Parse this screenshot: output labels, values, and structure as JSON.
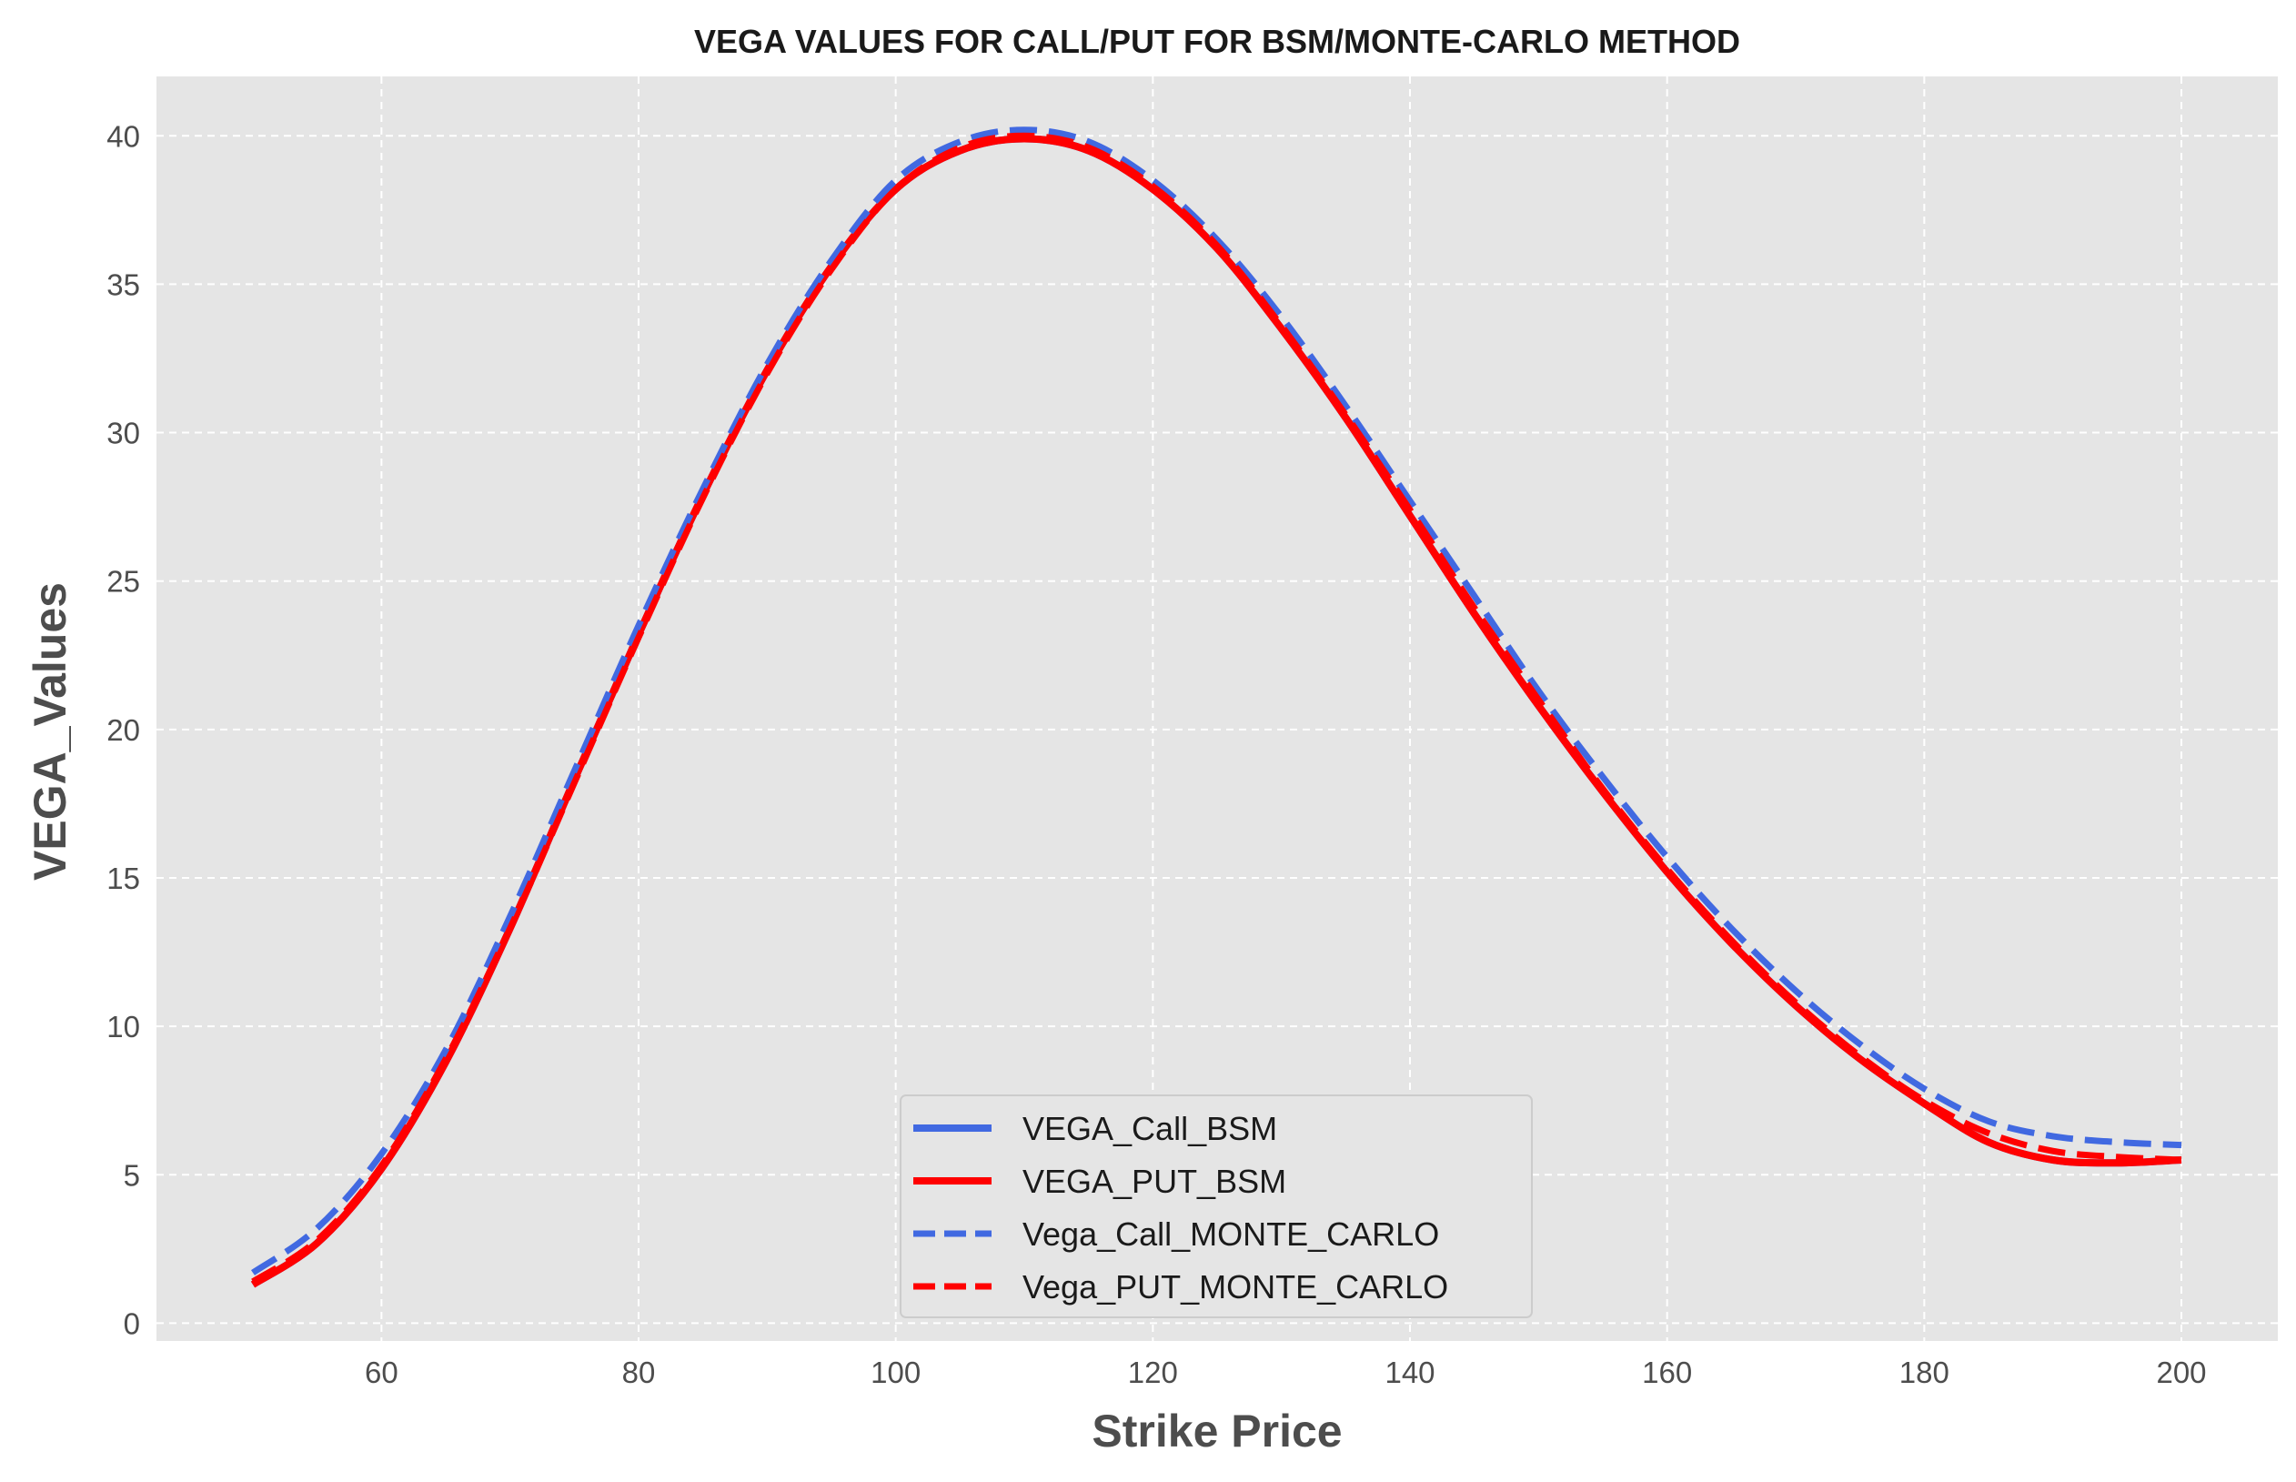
{
  "chart_data": {
    "type": "line",
    "title": "VEGA VALUES FOR CALL/PUT FOR BSM/MONTE-CARLO METHOD",
    "xlabel": "Strike Price",
    "ylabel": "VEGA_Values",
    "xlim": [
      42.5,
      207.5
    ],
    "ylim": [
      -0.6,
      42
    ],
    "xticks": [
      60,
      80,
      100,
      120,
      140,
      160,
      180,
      200
    ],
    "yticks": [
      0,
      5,
      10,
      15,
      20,
      25,
      30,
      35,
      40
    ],
    "grid": true,
    "legend_position": "lower center",
    "x": [
      50,
      55,
      60,
      65,
      70,
      75,
      80,
      85,
      90,
      95,
      100,
      105,
      110,
      115,
      120,
      125,
      130,
      135,
      140,
      145,
      150,
      155,
      160,
      165,
      170,
      175,
      180,
      185,
      190,
      195,
      200
    ],
    "series": [
      {
        "name": "VEGA_Call_BSM",
        "color": "#4169e1",
        "style": "solid",
        "values": [
          1.3,
          2.7,
          5.2,
          8.8,
          13.3,
          18.3,
          23.2,
          27.9,
          32.1,
          35.6,
          38.2,
          39.5,
          39.9,
          39.5,
          38.2,
          36.2,
          33.5,
          30.5,
          27.2,
          23.9,
          20.8,
          17.9,
          15.2,
          12.8,
          10.7,
          8.9,
          7.4,
          6.1,
          5.5,
          5.4,
          5.5
        ]
      },
      {
        "name": "VEGA_PUT_BSM",
        "color": "#ff0000",
        "style": "solid",
        "values": [
          1.3,
          2.7,
          5.2,
          8.8,
          13.3,
          18.3,
          23.2,
          27.9,
          32.1,
          35.6,
          38.2,
          39.5,
          39.9,
          39.5,
          38.2,
          36.2,
          33.5,
          30.5,
          27.2,
          23.9,
          20.8,
          17.9,
          15.2,
          12.8,
          10.7,
          8.9,
          7.4,
          6.1,
          5.5,
          5.4,
          5.5
        ]
      },
      {
        "name": "Vega_Call_MONTE_CARLO",
        "color": "#4169e1",
        "style": "dashed",
        "values": [
          1.7,
          3.2,
          5.7,
          9.2,
          13.7,
          18.6,
          23.5,
          28.1,
          32.3,
          35.8,
          38.5,
          39.8,
          40.2,
          39.8,
          38.5,
          36.5,
          33.9,
          30.9,
          27.7,
          24.5,
          21.3,
          18.4,
          15.7,
          13.3,
          11.2,
          9.4,
          7.9,
          6.8,
          6.3,
          6.1,
          6.0
        ]
      },
      {
        "name": "Vega_PUT_MONTE_CARLO",
        "color": "#ff0000",
        "style": "dashed",
        "values": [
          1.4,
          2.8,
          5.3,
          8.9,
          13.3,
          18.2,
          23.1,
          27.8,
          32.0,
          35.5,
          38.2,
          39.6,
          40.0,
          39.6,
          38.3,
          36.3,
          33.6,
          30.6,
          27.4,
          24.1,
          21.0,
          18.0,
          15.3,
          12.9,
          10.8,
          9.0,
          7.5,
          6.4,
          5.8,
          5.6,
          5.5
        ]
      }
    ]
  }
}
